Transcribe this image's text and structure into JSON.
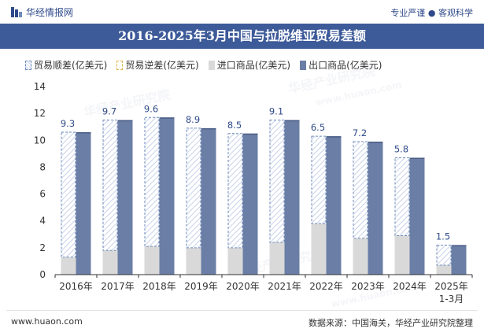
{
  "header": {
    "brand": "华经情报网",
    "tagline_left": "专业严谨",
    "tagline_right": "客观科学"
  },
  "watermark": {
    "cn": "华经产业研究院",
    "url": "www.huaon.com"
  },
  "colors": {
    "title_bg": "#3d5a99",
    "export": "#6a7ea6",
    "import": "#d9d9d9",
    "surplus_edge": "#6f8ab8",
    "deficit_edge": "#e0b84a"
  },
  "footer": {
    "website": "www.huaon.com",
    "source": "数据来源：中国海关，华经产业研究院整理"
  },
  "chart_data": {
    "type": "bar",
    "title": "2016-2025年3月中国与拉脱维亚贸易差额",
    "categories": [
      "2016年",
      "2017年",
      "2018年",
      "2019年",
      "2020年",
      "2021年",
      "2022年",
      "2023年",
      "2024年",
      "2025年1-3月"
    ],
    "series": [
      {
        "name": "贸易顺差(亿美元)",
        "values": [
          9.3,
          9.7,
          9.6,
          8.9,
          8.5,
          9.1,
          6.5,
          7.2,
          5.8,
          1.5
        ]
      },
      {
        "name": "贸易逆差(亿美元)",
        "values": [
          0,
          0,
          0,
          0,
          0,
          0,
          0,
          0,
          0,
          0
        ]
      },
      {
        "name": "进口商品(亿美元)",
        "values": [
          1.3,
          1.8,
          2.1,
          2.0,
          2.0,
          2.4,
          3.8,
          2.7,
          2.9,
          0.7
        ]
      },
      {
        "name": "出口商品(亿美元)",
        "values": [
          10.6,
          11.5,
          11.7,
          10.9,
          10.5,
          11.5,
          10.3,
          9.9,
          8.7,
          2.2
        ]
      }
    ],
    "ylim": [
      0,
      14
    ],
    "yticks": [
      0,
      2,
      4,
      6,
      8,
      10,
      12,
      14
    ],
    "grid": false,
    "legend_position": "top-left",
    "xlabel": "",
    "ylabel": ""
  }
}
